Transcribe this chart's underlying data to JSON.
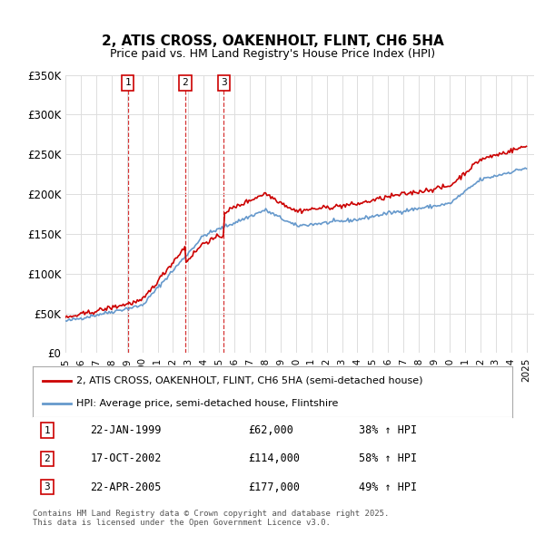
{
  "title": "2, ATIS CROSS, OAKENHOLT, FLINT, CH6 5HA",
  "subtitle": "Price paid vs. HM Land Registry's House Price Index (HPI)",
  "xlabel": "",
  "ylabel": "",
  "ylim": [
    0,
    350000
  ],
  "xlim_start": 1995.0,
  "xlim_end": 2025.5,
  "yticks": [
    0,
    50000,
    100000,
    150000,
    200000,
    250000,
    300000,
    350000
  ],
  "ytick_labels": [
    "£0",
    "£50K",
    "£100K",
    "£150K",
    "£200K",
    "£250K",
    "£300K",
    "£350K"
  ],
  "sale_dates": [
    1999.06,
    2002.8,
    2005.31
  ],
  "sale_labels": [
    "1",
    "2",
    "3"
  ],
  "sale_prices": [
    62000,
    114000,
    177000
  ],
  "property_line_color": "#cc0000",
  "hpi_line_color": "#6699cc",
  "vline_color": "#cc0000",
  "grid_color": "#dddddd",
  "background_color": "#ffffff",
  "legend_label_property": "2, ATIS CROSS, OAKENHOLT, FLINT, CH6 5HA (semi-detached house)",
  "legend_label_hpi": "HPI: Average price, semi-detached house, Flintshire",
  "table_rows": [
    {
      "num": "1",
      "date": "22-JAN-1999",
      "price": "£62,000",
      "hpi": "38% ↑ HPI"
    },
    {
      "num": "2",
      "date": "17-OCT-2002",
      "price": "£114,000",
      "hpi": "58% ↑ HPI"
    },
    {
      "num": "3",
      "date": "22-APR-2005",
      "price": "£177,000",
      "hpi": "49% ↑ HPI"
    }
  ],
  "footnote": "Contains HM Land Registry data © Crown copyright and database right 2025.\nThis data is licensed under the Open Government Licence v3.0.",
  "xticks": [
    1995,
    1996,
    1997,
    1998,
    1999,
    2000,
    2001,
    2002,
    2003,
    2004,
    2005,
    2006,
    2007,
    2008,
    2009,
    2010,
    2011,
    2012,
    2013,
    2014,
    2015,
    2016,
    2017,
    2018,
    2019,
    2020,
    2021,
    2022,
    2023,
    2024,
    2025
  ]
}
